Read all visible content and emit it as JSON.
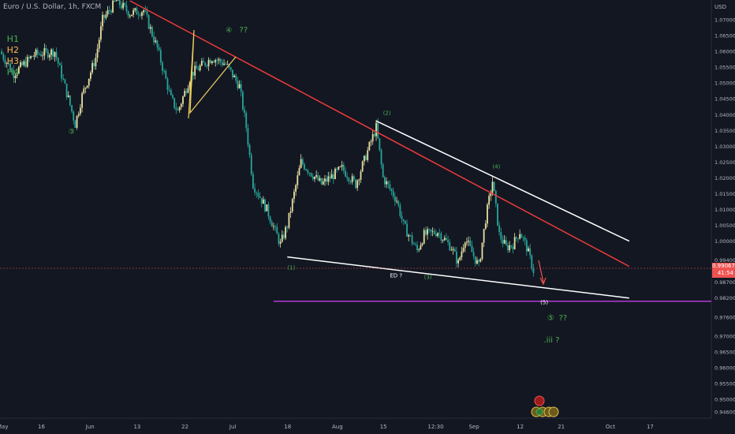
{
  "header": {
    "title": "Euro / U.S. Dollar, 1h, FXCM"
  },
  "price_tag": {
    "price": "0.99067",
    "countdown": "41:54"
  },
  "colors": {
    "background": "#131722",
    "up": "#e8e0a0",
    "down": "#26a69a",
    "resistance": "#ef3b3b",
    "channel": "#ffffff",
    "support_purple": "#b33bd6",
    "wave_green": "#4caf50",
    "wave_orange": "#ffb74d",
    "wedge_yellow": "#f0d060"
  },
  "chart_data": {
    "type": "candlestick",
    "title": "Euro / U.S. Dollar, 1h, FXCM",
    "y_unit": "USD",
    "ylim": [
      0.944,
      1.075
    ],
    "y_ticks": [
      "1.07000",
      "1.06500",
      "1.06000",
      "1.05500",
      "1.05000",
      "1.04500",
      "1.04000",
      "1.03500",
      "1.03000",
      "1.02500",
      "1.02000",
      "1.01500",
      "1.01000",
      "1.00500",
      "1.00000",
      "0.99400",
      "0.98700",
      "0.98200",
      "0.97600",
      "0.97000",
      "0.96500",
      "0.96000",
      "0.95500",
      "0.95000",
      "0.94600"
    ],
    "x_ticks": [
      "May",
      "16",
      "Jun",
      "13",
      "22",
      "Jul",
      "18",
      "Aug",
      "15",
      "12:30",
      "Sep",
      "12",
      "21",
      "Oct",
      "17"
    ],
    "x_tick_index": [
      0,
      6,
      13,
      20,
      27,
      34,
      42,
      49,
      56,
      63,
      69,
      76,
      82,
      89,
      95
    ],
    "x_range": [
      0,
      104
    ],
    "price_path": [
      [
        0,
        1.06
      ],
      [
        2,
        1.053
      ],
      [
        5,
        1.059
      ],
      [
        8,
        1.06
      ],
      [
        10,
        1.045
      ],
      [
        11,
        1.037
      ],
      [
        12,
        1.046
      ],
      [
        14,
        1.058
      ],
      [
        15,
        1.07
      ],
      [
        17,
        1.076
      ],
      [
        19,
        1.072
      ],
      [
        21,
        1.073
      ],
      [
        23,
        1.061
      ],
      [
        25,
        1.045
      ],
      [
        26,
        1.041
      ],
      [
        28,
        1.053
      ],
      [
        31,
        1.058
      ],
      [
        33,
        1.056
      ],
      [
        35,
        1.049
      ],
      [
        36,
        1.036
      ],
      [
        37,
        1.018
      ],
      [
        39,
        1.01
      ],
      [
        41,
        0.999
      ],
      [
        42,
        1.005
      ],
      [
        44,
        1.025
      ],
      [
        47,
        1.018
      ],
      [
        50,
        1.023
      ],
      [
        52,
        1.018
      ],
      [
        54,
        1.03
      ],
      [
        55,
        1.036
      ],
      [
        56,
        1.02
      ],
      [
        58,
        1.013
      ],
      [
        59,
        1.005
      ],
      [
        61,
        0.997
      ],
      [
        62,
        1.002
      ],
      [
        64,
        1.003
      ],
      [
        66,
        0.998
      ],
      [
        67,
        0.993
      ],
      [
        68,
        1.001
      ],
      [
        70,
        0.992
      ],
      [
        71,
        1.007
      ],
      [
        72,
        1.019
      ],
      [
        73,
        1.002
      ],
      [
        74,
        0.998
      ],
      [
        75,
        0.999
      ],
      [
        76,
        1.003
      ],
      [
        77,
        0.998
      ],
      [
        78,
        0.9907
      ]
    ],
    "markers": {
      "reversal": "down",
      "last_price": 0.99067
    },
    "lines": [
      {
        "name": "resistance",
        "from": [
          19,
          1.076
        ],
        "to": [
          92,
          0.992
        ]
      },
      {
        "name": "channel-upper",
        "from": [
          55,
          1.038
        ],
        "to": [
          92,
          1.0
        ]
      },
      {
        "name": "channel-lower",
        "from": [
          42,
          0.995
        ],
        "to": [
          92,
          0.982
        ]
      },
      {
        "name": "support",
        "from": [
          40,
          0.981
        ],
        "to": [
          104,
          0.981
        ]
      }
    ],
    "wave_labels": [
      {
        "text": "H1",
        "x": 1,
        "y": 1.063,
        "color": "wave_green",
        "size": 11
      },
      {
        "text": "H2",
        "x": 1,
        "y": 1.0595,
        "color": "wave_orange",
        "size": 11
      },
      {
        "text": "H3",
        "x": 1,
        "y": 1.056,
        "color": "wave_orange",
        "size": 11
      },
      {
        "text": "H4",
        "x": 1,
        "y": 1.0525,
        "color": "wave_green",
        "size": 11
      },
      {
        "text": "③",
        "x": 10,
        "y": 1.034,
        "color": "wave_green",
        "size": 9
      },
      {
        "text": "④",
        "x": 33,
        "y": 1.066,
        "color": "wave_green",
        "size": 9
      },
      {
        "text": "??",
        "x": 35,
        "y": 1.066,
        "color": "wave_green",
        "size": 10
      },
      {
        "text": "(1)",
        "x": 42,
        "y": 0.991,
        "color": "wave_green",
        "size": 7
      },
      {
        "text": "(2)",
        "x": 56,
        "y": 1.04,
        "color": "wave_green",
        "size": 7
      },
      {
        "text": "ED ?",
        "x": 57,
        "y": 0.9885,
        "color": "channel",
        "size": 7
      },
      {
        "text": "(3)",
        "x": 62,
        "y": 0.988,
        "color": "wave_green",
        "size": 7
      },
      {
        "text": "(4)",
        "x": 72,
        "y": 1.023,
        "color": "wave_green",
        "size": 7
      },
      {
        "text": "(5)",
        "x": 79,
        "y": 0.98,
        "color": "channel",
        "size": 7
      },
      {
        "text": "⑤",
        "x": 80,
        "y": 0.975,
        "color": "wave_green",
        "size": 10
      },
      {
        "text": "??",
        "x": 81.7,
        "y": 0.975,
        "color": "wave_green",
        "size": 10
      },
      {
        "text": ".iii ?",
        "x": 79.5,
        "y": 0.968,
        "color": "wave_green",
        "size": 10
      }
    ]
  }
}
